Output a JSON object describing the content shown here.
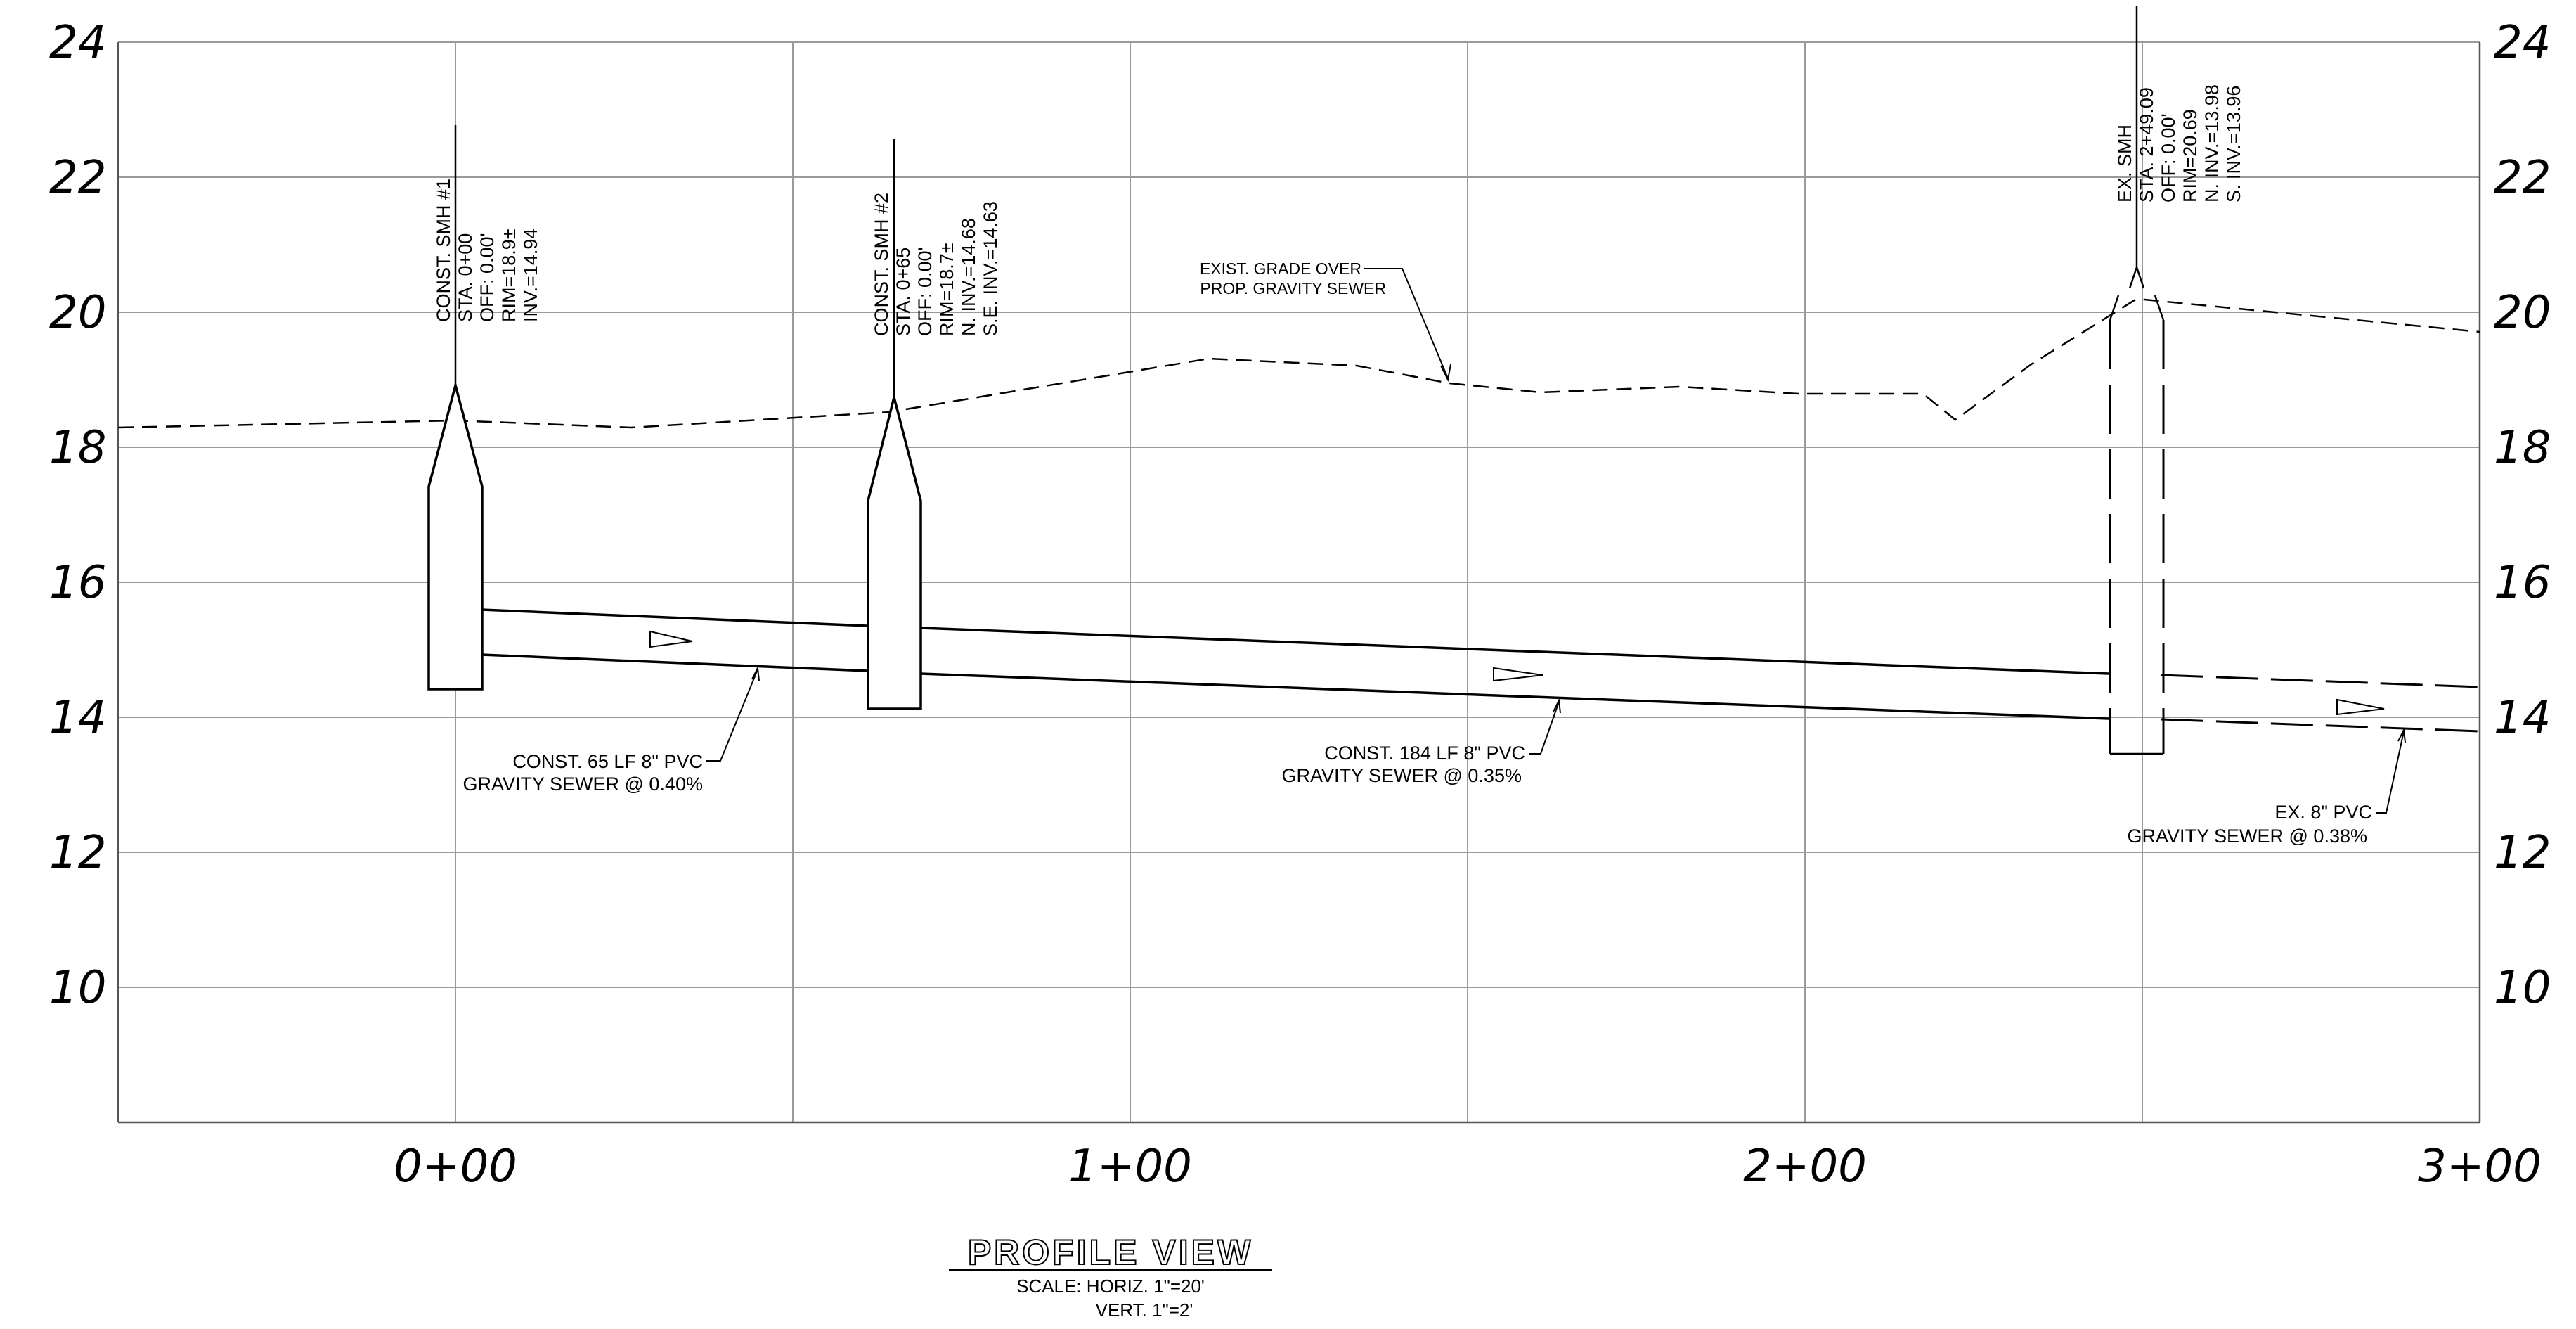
{
  "profile": {
    "y_axis": {
      "ticks": [
        "24",
        "22",
        "20",
        "18",
        "16",
        "14",
        "12",
        "10"
      ]
    },
    "x_axis": {
      "ticks": [
        "0+00",
        "1+00",
        "2+00",
        "3+00"
      ]
    },
    "existing_grade_label": [
      "EXIST. GRADE OVER",
      "PROP. GRAVITY SEWER"
    ],
    "manholes": [
      {
        "name": "CONST. SMH #1",
        "lines": [
          "CONST. SMH #1",
          "STA. 0+00",
          "OFF: 0.00'",
          "RIM=18.9±",
          "INV.=14.94"
        ]
      },
      {
        "name": "CONST. SMH #2",
        "lines": [
          "CONST. SMH #2",
          "STA. 0+65",
          "OFF: 0.00'",
          "RIM=18.7±",
          "N. INV.=14.68",
          "S.E. INV.=14.63"
        ]
      },
      {
        "name": "EX. SMH",
        "lines": [
          "EX. SMH",
          "STA. 2+49.09",
          "OFF: 0.00'",
          "RIM=20.69",
          "N. INV.=13.98",
          "S. INV.=13.96"
        ]
      }
    ],
    "pipes": [
      {
        "lines": [
          "CONST. 65 LF 8\" PVC",
          "GRAVITY SEWER @ 0.40%"
        ]
      },
      {
        "lines": [
          "CONST. 184 LF 8\" PVC",
          "GRAVITY SEWER @ 0.35%"
        ]
      },
      {
        "lines": [
          "EX. 8\" PVC",
          "GRAVITY SEWER @ 0.38%"
        ]
      }
    ],
    "title": "PROFILE VIEW",
    "scale_lines": [
      "SCALE: HORIZ. 1\"=20'",
      "VERT. 1\"=2'"
    ]
  }
}
